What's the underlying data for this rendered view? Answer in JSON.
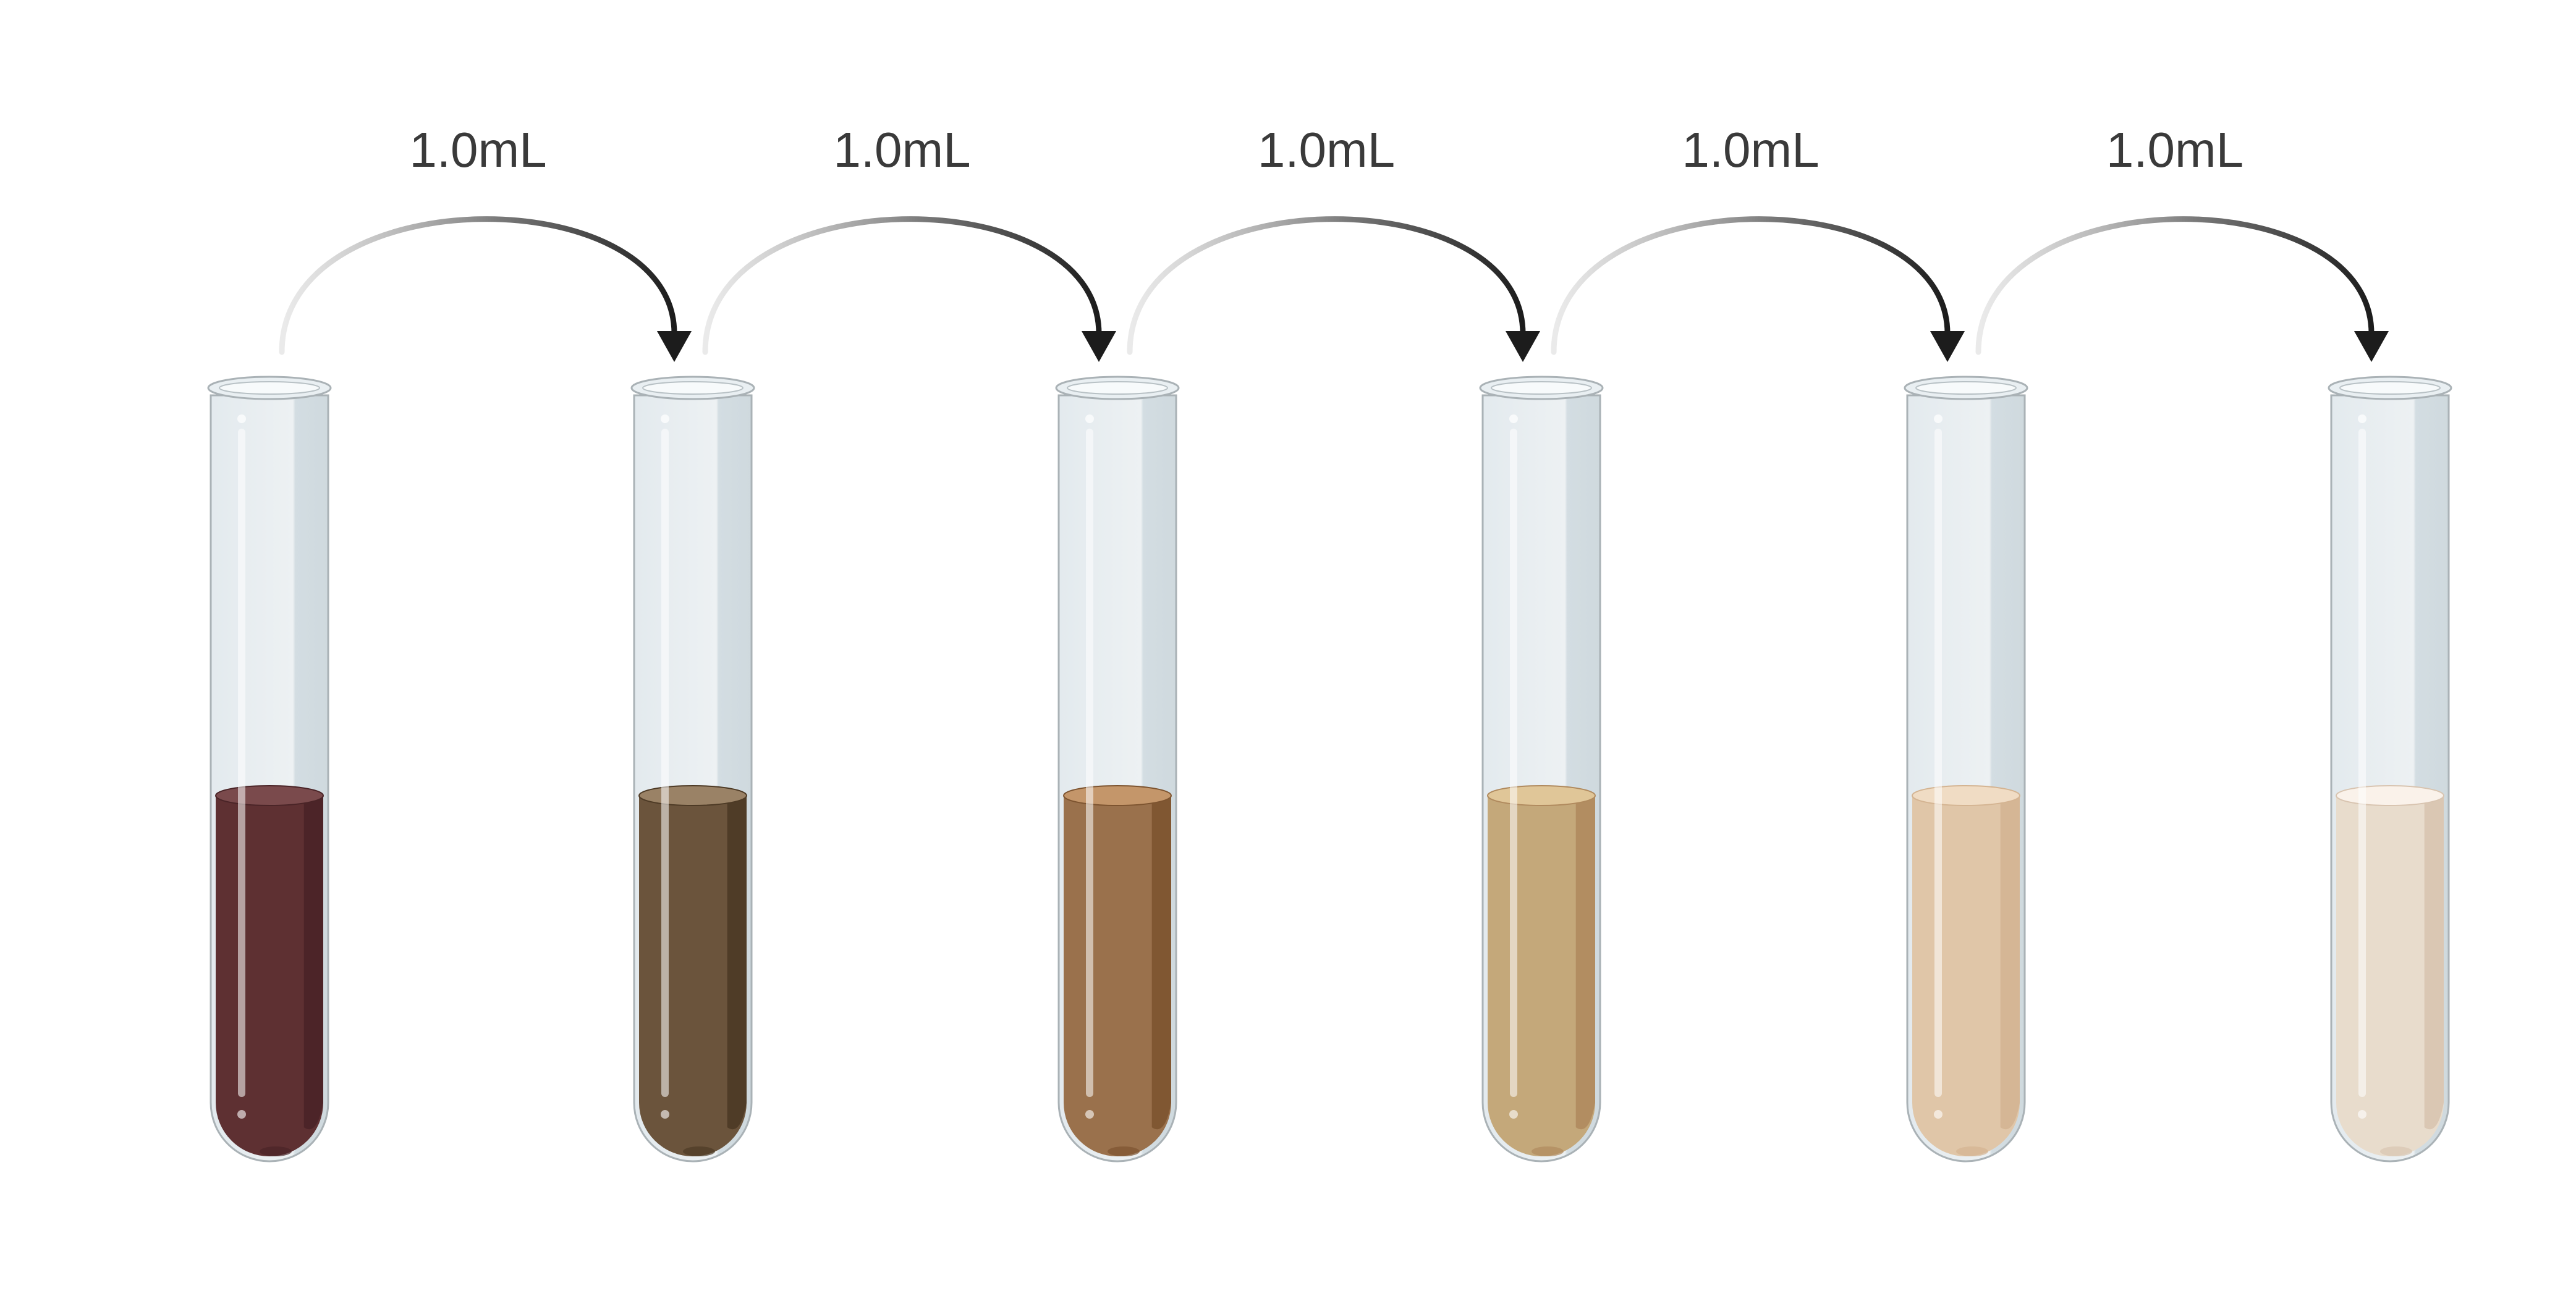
{
  "transfers": [
    {
      "from": 1,
      "to": 2,
      "label": "1.0mL"
    },
    {
      "from": 2,
      "to": 3,
      "label": "1.0mL"
    },
    {
      "from": 3,
      "to": 4,
      "label": "1.0mL"
    },
    {
      "from": 4,
      "to": 5,
      "label": "1.0mL"
    },
    {
      "from": 5,
      "to": 6,
      "label": "1.0mL"
    }
  ],
  "tubes": [
    {
      "index": 1,
      "liquid_color": "#5e3032",
      "liquid_shadow": "#4a2427",
      "liquid_top": "#7a4a4c"
    },
    {
      "index": 2,
      "liquid_color": "#6b543c",
      "liquid_shadow": "#4d3a25",
      "liquid_top": "#9a8266"
    },
    {
      "index": 3,
      "liquid_color": "#9a714c",
      "liquid_shadow": "#7d5430",
      "liquid_top": "#c4966a"
    },
    {
      "index": 4,
      "liquid_color": "#c4a87a",
      "liquid_shadow": "#b08a5e",
      "liquid_top": "#e0c698"
    },
    {
      "index": 5,
      "liquid_color": "#e0c6a8",
      "liquid_shadow": "#d4b492",
      "liquid_top": "#f0dcc4"
    },
    {
      "index": 6,
      "liquid_color": "#e8dccc",
      "liquid_shadow": "#d8c4b0",
      "liquid_top": "#faf2ea"
    }
  ],
  "colors": {
    "glass": "#e8eef1",
    "glass_edge": "#aab2b6",
    "glass_shade": "#d3dde2",
    "arrow_dark": "#1c1c1c",
    "arrow_light": "#d6d6d6",
    "label_text": "#3a3a3a"
  }
}
